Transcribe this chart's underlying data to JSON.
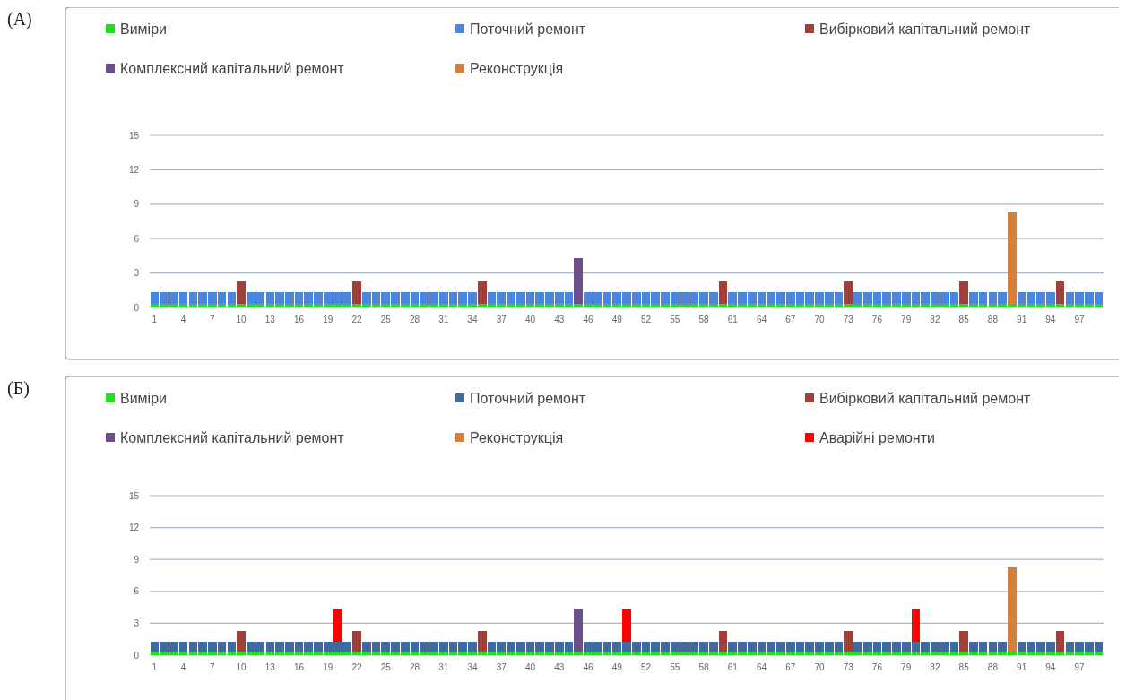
{
  "chart_data": [
    {
      "type": "bar",
      "title": "(А)",
      "stacked": true,
      "grid": "y",
      "legend": "top",
      "ylim": [
        0,
        15
      ],
      "yticks": [
        0,
        3,
        6,
        9,
        12,
        15
      ],
      "categories": [
        "1",
        null,
        null,
        "4",
        null,
        null,
        "7",
        null,
        null,
        "10",
        null,
        null,
        "13",
        null,
        null,
        "16",
        null,
        null,
        "19",
        null,
        null,
        "22",
        null,
        null,
        "25",
        null,
        null,
        "28",
        null,
        null,
        "31",
        null,
        null,
        "34",
        null,
        null,
        "37",
        null,
        null,
        "40",
        null,
        null,
        "43",
        null,
        null,
        "46",
        null,
        null,
        "49",
        null,
        null,
        "52",
        null,
        null,
        "55",
        null,
        null,
        "58",
        null,
        null,
        "61",
        null,
        null,
        "64",
        null,
        null,
        "67",
        null,
        null,
        "70",
        null,
        null,
        "73",
        null,
        null,
        "76",
        null,
        null,
        "79",
        null,
        null,
        "82",
        null,
        null,
        "85",
        null,
        null,
        "88",
        null,
        null,
        "91",
        null,
        null,
        "94",
        null,
        null,
        "97",
        null,
        null
      ],
      "series": [
        {
          "name": "Виміри",
          "color": "#22dd22",
          "values": [
            0.3,
            0.3,
            0.3,
            0.3,
            0.3,
            0.3,
            0.3,
            0.3,
            0.3,
            0.3,
            0.3,
            0.3,
            0.3,
            0.3,
            0.3,
            0.3,
            0.3,
            0.3,
            0.3,
            0.3,
            0.3,
            0.3,
            0.3,
            0.3,
            0.3,
            0.3,
            0.3,
            0.3,
            0.3,
            0.3,
            0.3,
            0.3,
            0.3,
            0.3,
            0.3,
            0.3,
            0.3,
            0.3,
            0.3,
            0.3,
            0.3,
            0.3,
            0.3,
            0.3,
            0.3,
            0.3,
            0.3,
            0.3,
            0.3,
            0.3,
            0.3,
            0.3,
            0.3,
            0.3,
            0.3,
            0.3,
            0.3,
            0.3,
            0.3,
            0.3,
            0.3,
            0.3,
            0.3,
            0.3,
            0.3,
            0.3,
            0.3,
            0.3,
            0.3,
            0.3,
            0.3,
            0.3,
            0.3,
            0.3,
            0.3,
            0.3,
            0.3,
            0.3,
            0.3,
            0.3,
            0.3,
            0.3,
            0.3,
            0.3,
            0.3,
            0.3,
            0.3,
            0.3,
            0.3,
            0.3,
            0.3,
            0.3,
            0.3,
            0.3,
            0.3,
            0.3,
            0.3,
            0.3,
            0.3
          ]
        },
        {
          "name": "Поточний ремонт",
          "color": "#4a86e0",
          "values": [
            1,
            1,
            1,
            1,
            1,
            1,
            1,
            1,
            1,
            null,
            1,
            1,
            1,
            1,
            1,
            1,
            1,
            1,
            1,
            1,
            1,
            null,
            1,
            1,
            1,
            1,
            1,
            1,
            1,
            1,
            1,
            1,
            1,
            1,
            null,
            1,
            1,
            1,
            1,
            1,
            1,
            1,
            1,
            1,
            null,
            1,
            1,
            1,
            1,
            1,
            1,
            1,
            1,
            1,
            1,
            1,
            1,
            1,
            1,
            null,
            1,
            1,
            1,
            1,
            1,
            1,
            1,
            1,
            1,
            1,
            1,
            1,
            null,
            1,
            1,
            1,
            1,
            1,
            1,
            1,
            1,
            1,
            1,
            1,
            null,
            1,
            1,
            1,
            1,
            null,
            1,
            1,
            1,
            1,
            null,
            1,
            1,
            1,
            1
          ]
        },
        {
          "name": "Вибірковий капітальний ремонт",
          "color": "#a0403a",
          "values": [
            null,
            null,
            null,
            null,
            null,
            null,
            null,
            null,
            null,
            2,
            null,
            null,
            null,
            null,
            null,
            null,
            null,
            null,
            null,
            null,
            null,
            2,
            null,
            null,
            null,
            null,
            null,
            null,
            null,
            null,
            null,
            null,
            null,
            null,
            2,
            null,
            null,
            null,
            null,
            null,
            null,
            null,
            null,
            null,
            null,
            null,
            null,
            null,
            null,
            null,
            null,
            null,
            null,
            null,
            null,
            null,
            null,
            null,
            null,
            2,
            null,
            null,
            null,
            null,
            null,
            null,
            null,
            null,
            null,
            null,
            null,
            null,
            2,
            null,
            null,
            null,
            null,
            null,
            null,
            null,
            null,
            null,
            null,
            null,
            2,
            null,
            null,
            null,
            null,
            null,
            null,
            null,
            null,
            null,
            2,
            null,
            null,
            null,
            null
          ]
        },
        {
          "name": "Комплексний капітальний ремонт",
          "color": "#6c4e8a",
          "values": [
            null,
            null,
            null,
            null,
            null,
            null,
            null,
            null,
            null,
            null,
            null,
            null,
            null,
            null,
            null,
            null,
            null,
            null,
            null,
            null,
            null,
            null,
            null,
            null,
            null,
            null,
            null,
            null,
            null,
            null,
            null,
            null,
            null,
            null,
            null,
            null,
            null,
            null,
            null,
            null,
            null,
            null,
            null,
            null,
            4,
            null,
            null,
            null,
            null,
            null,
            null,
            null,
            null,
            null,
            null,
            null,
            null,
            null,
            null,
            null,
            null,
            null,
            null,
            null,
            null,
            null,
            null,
            null,
            null,
            null,
            null,
            null,
            null,
            null,
            null,
            null,
            null,
            null,
            null,
            null,
            null,
            null,
            null,
            null,
            null,
            null,
            null,
            null,
            null,
            null,
            null,
            null,
            null,
            null,
            null,
            null,
            null,
            null,
            null
          ]
        },
        {
          "name": "Реконструкція",
          "color": "#d5803a",
          "values": [
            null,
            null,
            null,
            null,
            null,
            null,
            null,
            null,
            null,
            null,
            null,
            null,
            null,
            null,
            null,
            null,
            null,
            null,
            null,
            null,
            null,
            null,
            null,
            null,
            null,
            null,
            null,
            null,
            null,
            null,
            null,
            null,
            null,
            null,
            null,
            null,
            null,
            null,
            null,
            null,
            null,
            null,
            null,
            null,
            null,
            null,
            null,
            null,
            null,
            null,
            null,
            null,
            null,
            null,
            null,
            null,
            null,
            null,
            null,
            null,
            null,
            null,
            null,
            null,
            null,
            null,
            null,
            null,
            null,
            null,
            null,
            null,
            null,
            null,
            null,
            null,
            null,
            null,
            null,
            null,
            null,
            null,
            null,
            null,
            null,
            null,
            null,
            null,
            null,
            8,
            null,
            null,
            null,
            null,
            null,
            null,
            null,
            null,
            null
          ]
        }
      ]
    },
    {
      "type": "bar",
      "title": "(Б)",
      "stacked": true,
      "grid": "y",
      "legend": "top",
      "ylim": [
        0,
        15
      ],
      "yticks": [
        0,
        3,
        6,
        9,
        12,
        15
      ],
      "categories": [
        "1",
        null,
        null,
        "4",
        null,
        null,
        "7",
        null,
        null,
        "10",
        null,
        null,
        "13",
        null,
        null,
        "16",
        null,
        null,
        "19",
        null,
        null,
        "22",
        null,
        null,
        "25",
        null,
        null,
        "28",
        null,
        null,
        "31",
        null,
        null,
        "34",
        null,
        null,
        "37",
        null,
        null,
        "40",
        null,
        null,
        "43",
        null,
        null,
        "46",
        null,
        null,
        "49",
        null,
        null,
        "52",
        null,
        null,
        "55",
        null,
        null,
        "58",
        null,
        null,
        "61",
        null,
        null,
        "64",
        null,
        null,
        "67",
        null,
        null,
        "70",
        null,
        null,
        "73",
        null,
        null,
        "76",
        null,
        null,
        "79",
        null,
        null,
        "82",
        null,
        null,
        "85",
        null,
        null,
        "88",
        null,
        null,
        "91",
        null,
        null,
        "94",
        null,
        null,
        "97",
        null,
        null
      ],
      "series": [
        {
          "name": "Виміри",
          "color": "#22dd22",
          "values": [
            0.3,
            0.3,
            0.3,
            0.3,
            0.3,
            0.3,
            0.3,
            0.3,
            0.3,
            0.3,
            0.3,
            0.3,
            0.3,
            0.3,
            0.3,
            0.3,
            0.3,
            0.3,
            0.3,
            0.3,
            0.3,
            0.3,
            0.3,
            0.3,
            0.3,
            0.3,
            0.3,
            0.3,
            0.3,
            0.3,
            0.3,
            0.3,
            0.3,
            0.3,
            0.3,
            0.3,
            0.3,
            0.3,
            0.3,
            0.3,
            0.3,
            0.3,
            0.3,
            0.3,
            0.3,
            0.3,
            0.3,
            0.3,
            0.3,
            0.3,
            0.3,
            0.3,
            0.3,
            0.3,
            0.3,
            0.3,
            0.3,
            0.3,
            0.3,
            0.3,
            0.3,
            0.3,
            0.3,
            0.3,
            0.3,
            0.3,
            0.3,
            0.3,
            0.3,
            0.3,
            0.3,
            0.3,
            0.3,
            0.3,
            0.3,
            0.3,
            0.3,
            0.3,
            0.3,
            0.3,
            0.3,
            0.3,
            0.3,
            0.3,
            0.3,
            0.3,
            0.3,
            0.3,
            0.3,
            0.3,
            0.3,
            0.3,
            0.3,
            0.3,
            0.3,
            0.3,
            0.3,
            0.3,
            0.3
          ]
        },
        {
          "name": "Поточний ремонт",
          "color": "#3f6aa0",
          "values": [
            1,
            1,
            1,
            1,
            1,
            1,
            1,
            1,
            1,
            null,
            1,
            1,
            1,
            1,
            1,
            1,
            1,
            1,
            1,
            1,
            1,
            null,
            1,
            1,
            1,
            1,
            1,
            1,
            1,
            1,
            1,
            1,
            1,
            1,
            null,
            1,
            1,
            1,
            1,
            1,
            1,
            1,
            1,
            1,
            null,
            1,
            1,
            1,
            1,
            1,
            1,
            1,
            1,
            1,
            1,
            1,
            1,
            1,
            1,
            null,
            1,
            1,
            1,
            1,
            1,
            1,
            1,
            1,
            1,
            1,
            1,
            1,
            null,
            1,
            1,
            1,
            1,
            1,
            1,
            1,
            1,
            1,
            1,
            1,
            null,
            1,
            1,
            1,
            1,
            null,
            1,
            1,
            1,
            1,
            null,
            1,
            1,
            1,
            1
          ]
        },
        {
          "name": "Вибірковий капітальний ремонт",
          "color": "#a0403a",
          "values": [
            null,
            null,
            null,
            null,
            null,
            null,
            null,
            null,
            null,
            2,
            null,
            null,
            null,
            null,
            null,
            null,
            null,
            null,
            null,
            null,
            null,
            2,
            null,
            null,
            null,
            null,
            null,
            null,
            null,
            null,
            null,
            null,
            null,
            null,
            2,
            null,
            null,
            null,
            null,
            null,
            null,
            null,
            null,
            null,
            null,
            null,
            null,
            null,
            null,
            null,
            null,
            null,
            null,
            null,
            null,
            null,
            null,
            null,
            null,
            2,
            null,
            null,
            null,
            null,
            null,
            null,
            null,
            null,
            null,
            null,
            null,
            null,
            2,
            null,
            null,
            null,
            null,
            null,
            null,
            null,
            null,
            null,
            null,
            null,
            2,
            null,
            null,
            null,
            null,
            null,
            null,
            null,
            null,
            null,
            2,
            null,
            null,
            null,
            null
          ]
        },
        {
          "name": "Комплексний капітальний ремонт",
          "color": "#6c4e8a",
          "values": [
            null,
            null,
            null,
            null,
            null,
            null,
            null,
            null,
            null,
            null,
            null,
            null,
            null,
            null,
            null,
            null,
            null,
            null,
            null,
            null,
            null,
            null,
            null,
            null,
            null,
            null,
            null,
            null,
            null,
            null,
            null,
            null,
            null,
            null,
            null,
            null,
            null,
            null,
            null,
            null,
            null,
            null,
            null,
            null,
            4,
            null,
            null,
            null,
            null,
            null,
            null,
            null,
            null,
            null,
            null,
            null,
            null,
            null,
            null,
            null,
            null,
            null,
            null,
            null,
            null,
            null,
            null,
            null,
            null,
            null,
            null,
            null,
            null,
            null,
            null,
            null,
            null,
            null,
            null,
            null,
            null,
            null,
            null,
            null,
            null,
            null,
            null,
            null,
            null,
            null,
            null,
            null,
            null,
            null,
            null,
            null,
            null,
            null,
            null
          ]
        },
        {
          "name": "Реконструкція",
          "color": "#d5803a",
          "values": [
            null,
            null,
            null,
            null,
            null,
            null,
            null,
            null,
            null,
            null,
            null,
            null,
            null,
            null,
            null,
            null,
            null,
            null,
            null,
            null,
            null,
            null,
            null,
            null,
            null,
            null,
            null,
            null,
            null,
            null,
            null,
            null,
            null,
            null,
            null,
            null,
            null,
            null,
            null,
            null,
            null,
            null,
            null,
            null,
            null,
            null,
            null,
            null,
            null,
            null,
            null,
            null,
            null,
            null,
            null,
            null,
            null,
            null,
            null,
            null,
            null,
            null,
            null,
            null,
            null,
            null,
            null,
            null,
            null,
            null,
            null,
            null,
            null,
            null,
            null,
            null,
            null,
            null,
            null,
            null,
            null,
            null,
            null,
            null,
            null,
            null,
            null,
            null,
            null,
            8,
            null,
            null,
            null,
            null,
            null,
            null,
            null,
            null,
            null
          ]
        },
        {
          "name": "Аварійні ремонти",
          "color": "#ff0000",
          "values": [
            null,
            null,
            null,
            null,
            null,
            null,
            null,
            null,
            null,
            null,
            null,
            null,
            null,
            null,
            null,
            null,
            null,
            null,
            null,
            3,
            null,
            null,
            null,
            null,
            null,
            null,
            null,
            null,
            null,
            null,
            null,
            null,
            null,
            null,
            null,
            null,
            null,
            null,
            null,
            null,
            null,
            null,
            null,
            null,
            null,
            null,
            null,
            null,
            null,
            3,
            null,
            null,
            null,
            null,
            null,
            null,
            null,
            null,
            null,
            null,
            null,
            null,
            null,
            null,
            null,
            null,
            null,
            null,
            null,
            null,
            null,
            null,
            null,
            null,
            null,
            null,
            null,
            null,
            null,
            3,
            null,
            null,
            null,
            null,
            null,
            null,
            null,
            null,
            null,
            null,
            null,
            null,
            null,
            null,
            null,
            null,
            null,
            null,
            null
          ]
        }
      ]
    }
  ]
}
